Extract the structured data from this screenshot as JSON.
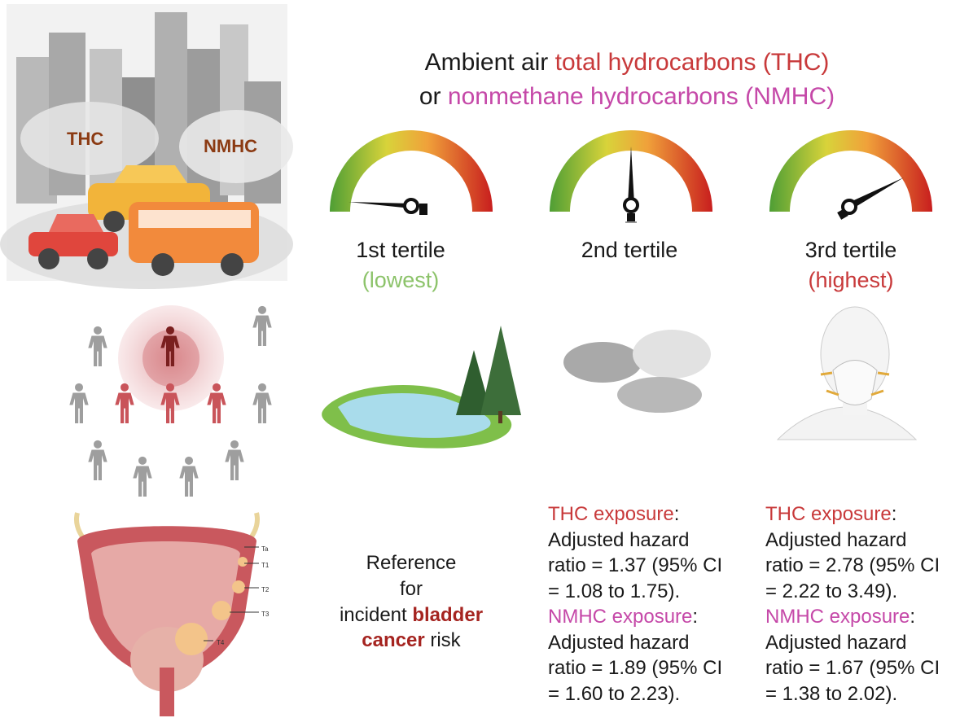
{
  "title": {
    "line1": {
      "prefix": "Ambient air ",
      "highlight": "total hydrocarbons (THC)"
    },
    "line2": {
      "prefix": "or ",
      "highlight": "nonmethane hydrocarbons (NMHC)"
    }
  },
  "city_labels": [
    "THC",
    "NMHC"
  ],
  "tertiles": [
    {
      "label": "1st tertile",
      "note": "(lowest)"
    },
    {
      "label": "2nd tertile"
    },
    {
      "label": "3rd tertile",
      "note": "(highest)"
    }
  ],
  "bladder_stages": [
    "Ta",
    "T1",
    "T2",
    "T3",
    "T4"
  ],
  "reference": {
    "line1": "Reference",
    "line2": "for",
    "line3_prefix": "incident ",
    "line3_emphasis": "bladder",
    "line4_emphasis": "cancer",
    "line4_suffix": " risk"
  },
  "results": [
    {
      "thc_label": "THC exposure",
      "thc_suffix": ":",
      "thc_lines": [
        "Adjusted hazard",
        "ratio = 1.37 (95% CI",
        "= 1.08 to 1.75)."
      ],
      "nmhc_label": "NMHC exposure",
      "nmhc_suffix": ":",
      "nmhc_lines": [
        "Adjusted hazard",
        "ratio = 1.89 (95% CI",
        "= 1.60 to 2.23)."
      ]
    },
    {
      "thc_label": "THC exposure",
      "thc_suffix": ":",
      "thc_lines": [
        "Adjusted hazard",
        "ratio = 2.78 (95% CI",
        "= 2.22 to 3.49)."
      ],
      "nmhc_label": "NMHC exposure",
      "nmhc_suffix": ":",
      "nmhc_lines": [
        "Adjusted hazard",
        "ratio = 1.67 (95% CI",
        "= 1.38 to 2.02)."
      ]
    }
  ]
}
